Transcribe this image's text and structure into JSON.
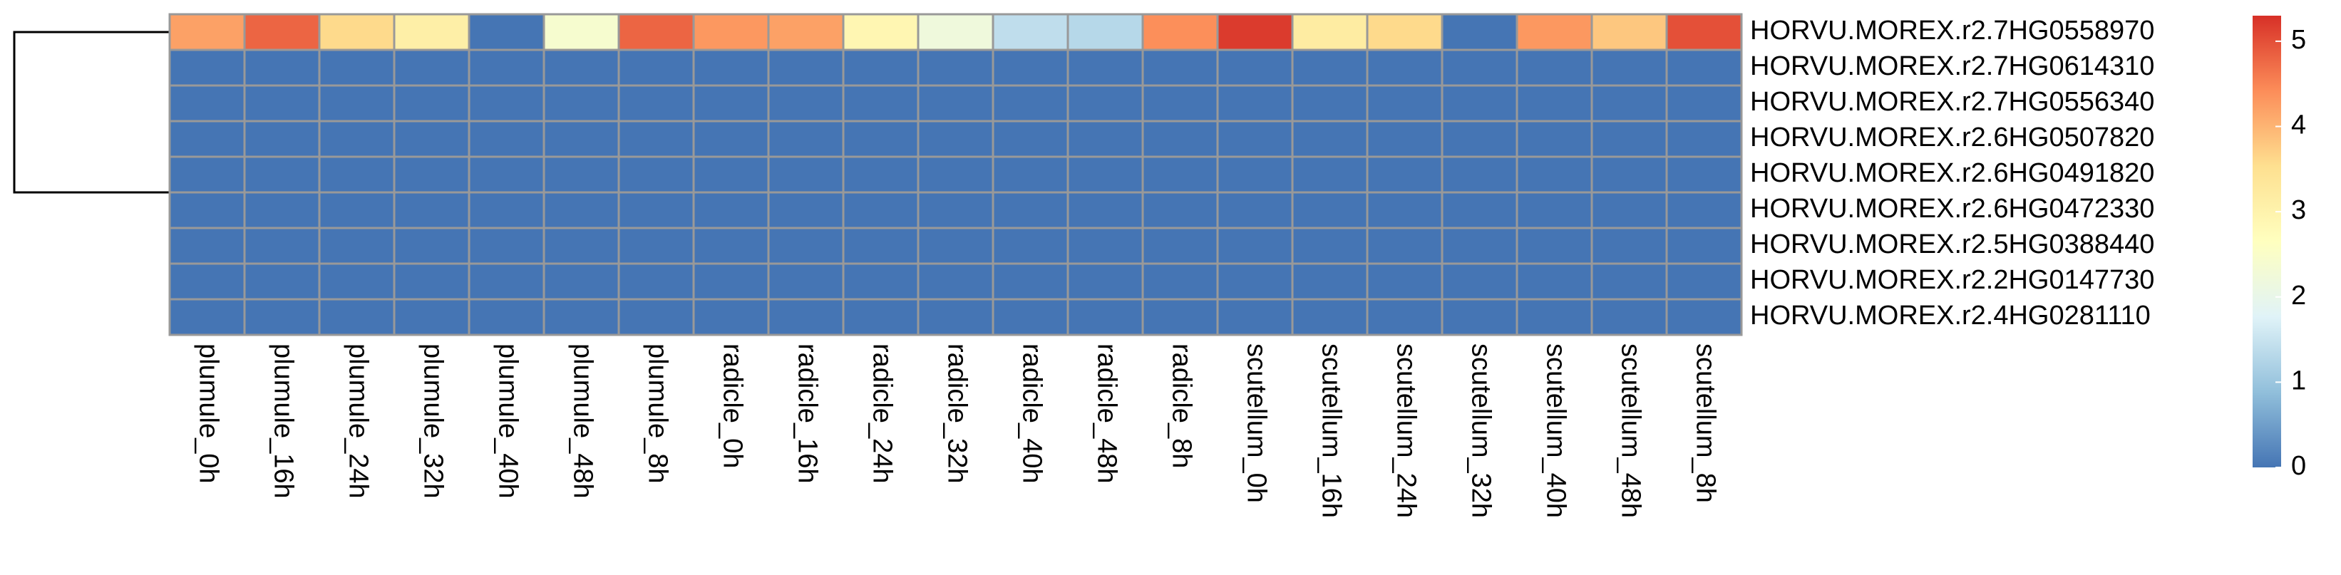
{
  "chart_data": {
    "type": "heatmap",
    "columns": [
      "plumule_0h",
      "plumule_16h",
      "plumule_24h",
      "plumule_32h",
      "plumule_40h",
      "plumule_48h",
      "plumule_8h",
      "radicle_0h",
      "radicle_16h",
      "radicle_24h",
      "radicle_32h",
      "radicle_40h",
      "radicle_48h",
      "radicle_8h",
      "scutellum_0h",
      "scutellum_16h",
      "scutellum_24h",
      "scutellum_32h",
      "scutellum_40h",
      "scutellum_48h",
      "scutellum_8h"
    ],
    "rows": [
      "HORVU.MOREX.r2.7HG0558970",
      "HORVU.MOREX.r2.7HG0614310",
      "HORVU.MOREX.r2.7HG0556340",
      "HORVU.MOREX.r2.6HG0507820",
      "HORVU.MOREX.r2.6HG0491820",
      "HORVU.MOREX.r2.6HG0472330",
      "HORVU.MOREX.r2.5HG0388440",
      "HORVU.MOREX.r2.2HG0147730",
      "HORVU.MOREX.r2.4HG0281110"
    ],
    "values": [
      [
        4.2,
        4.8,
        3.6,
        3.1,
        0.0,
        2.4,
        4.8,
        4.3,
        4.2,
        2.9,
        2.2,
        1.4,
        1.3,
        4.4,
        5.2,
        3.2,
        3.6,
        0.0,
        4.3,
        3.8,
        5.0
      ],
      [
        0,
        0,
        0,
        0,
        0,
        0,
        0,
        0,
        0,
        0,
        0,
        0,
        0,
        0,
        0,
        0,
        0,
        0,
        0,
        0,
        0
      ],
      [
        0,
        0,
        0,
        0,
        0,
        0,
        0,
        0,
        0,
        0,
        0,
        0,
        0,
        0,
        0,
        0,
        0,
        0,
        0,
        0,
        0
      ],
      [
        0,
        0,
        0,
        0,
        0,
        0,
        0,
        0,
        0,
        0,
        0,
        0,
        0,
        0,
        0,
        0,
        0,
        0,
        0,
        0,
        0
      ],
      [
        0,
        0,
        0,
        0,
        0,
        0,
        0,
        0,
        0,
        0,
        0,
        0,
        0,
        0,
        0,
        0,
        0,
        0,
        0,
        0,
        0
      ],
      [
        0,
        0,
        0,
        0,
        0,
        0,
        0,
        0,
        0,
        0,
        0,
        0,
        0,
        0,
        0,
        0,
        0,
        0,
        0,
        0,
        0
      ],
      [
        0,
        0,
        0,
        0,
        0,
        0,
        0,
        0,
        0,
        0,
        0,
        0,
        0,
        0,
        0,
        0,
        0,
        0,
        0,
        0,
        0
      ],
      [
        0,
        0,
        0,
        0,
        0,
        0,
        0,
        0,
        0,
        0,
        0,
        0,
        0,
        0,
        0,
        0,
        0,
        0,
        0,
        0,
        0
      ],
      [
        0,
        0,
        0,
        0,
        0,
        0,
        0,
        0,
        0,
        0,
        0,
        0,
        0,
        0,
        0,
        0,
        0,
        0,
        0,
        0,
        0
      ]
    ],
    "value_range": [
      0,
      5.3
    ],
    "color_scale": [
      "#4575b4",
      "#91bfdb",
      "#e0f3f8",
      "#ffffbf",
      "#fee090",
      "#fc8d59",
      "#d73027"
    ],
    "cell_border_color": "#999999",
    "legend": {
      "placement": "right",
      "ticks": [
        "0",
        "1",
        "2",
        "3",
        "4",
        "5"
      ]
    },
    "row_dendrogram": {
      "placement": "left",
      "clusters": [
        [
          "HORVU.MOREX.r2.7HG0558970"
        ],
        [
          "HORVU.MOREX.r2.7HG0614310",
          "HORVU.MOREX.r2.7HG0556340",
          "HORVU.MOREX.r2.6HG0507820",
          "HORVU.MOREX.r2.6HG0491820",
          "HORVU.MOREX.r2.6HG0472330",
          "HORVU.MOREX.r2.5HG0388440",
          "HORVU.MOREX.r2.2HG0147730",
          "HORVU.MOREX.r2.4HG0281110"
        ]
      ]
    }
  }
}
